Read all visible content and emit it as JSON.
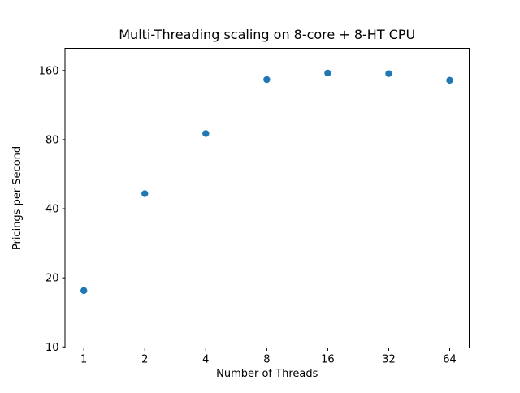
{
  "figure": {
    "background": "#ffffff",
    "frame_color": "#000000",
    "text_color": "#000000"
  },
  "chart_data": {
    "type": "scatter",
    "title": "Multi-Threading scaling on 8-core + 8-HT CPU",
    "xlabel": "Number of Threads",
    "ylabel": "Pricings per Second",
    "x_scale": "log2",
    "y_scale": "log2",
    "x_ticks": [
      1,
      2,
      4,
      8,
      16,
      32,
      64
    ],
    "y_ticks": [
      10,
      20,
      40,
      80,
      160
    ],
    "xlim": [
      0.81,
      80
    ],
    "ylim": [
      9.9,
      200
    ],
    "grid": false,
    "legend": null,
    "marker_color": "#1f77b4",
    "points": [
      {
        "x": 1,
        "y": 17.6
      },
      {
        "x": 2,
        "y": 46.5
      },
      {
        "x": 4,
        "y": 85
      },
      {
        "x": 8,
        "y": 146
      },
      {
        "x": 16,
        "y": 156
      },
      {
        "x": 32,
        "y": 155
      },
      {
        "x": 64,
        "y": 145
      }
    ]
  }
}
